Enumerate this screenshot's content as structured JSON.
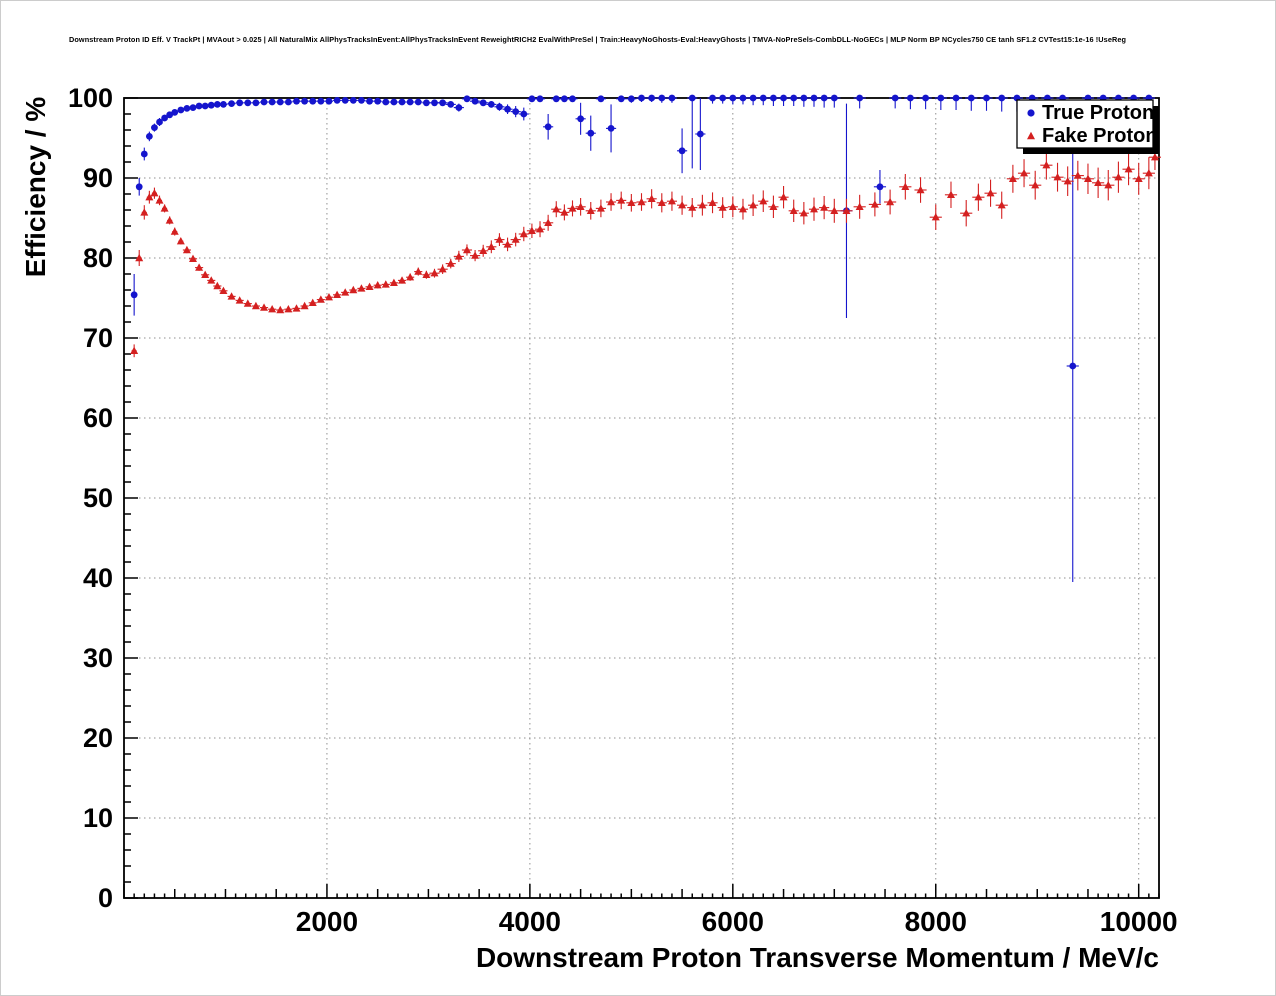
{
  "chart_data": {
    "type": "scatter",
    "title": "Downstream Proton ID Eff. V TrackPt | MVAout > 0.025 | All NaturalMix AllPhysTracksInEvent:AllPhysTracksInEvent ReweightRICH2 EvalWithPreSel | Train:HeavyNoGhosts-Eval:HeavyGhosts | TMVA-NoPreSels-CombDLL-NoGECs | MLP Norm BP NCycles750 CE tanh SF1.2 CVTest15:1e-16 !UseReg",
    "xlabel": "Downstream Proton Transverse Momentum / MeV/c",
    "ylabel": "Efficiency / %",
    "xlim": [
      0,
      10200
    ],
    "ylim": [
      0,
      100
    ],
    "x_ticks": [
      2000,
      4000,
      6000,
      8000,
      10000
    ],
    "x_tick_labels": [
      "2000",
      "4000",
      "6000",
      "8000",
      "10000"
    ],
    "y_ticks": [
      0,
      10,
      20,
      30,
      40,
      50,
      60,
      70,
      80,
      90,
      100
    ],
    "y_tick_labels": [
      "0",
      "10",
      "20",
      "30",
      "40",
      "50",
      "60",
      "70",
      "80",
      "90",
      "100"
    ],
    "x_minor_step": 100,
    "x_medium_step": 500,
    "y_minor_step": 2,
    "grid": true,
    "grid_color": "#8f8f8f",
    "frame_color": "#000000",
    "x_err_bins": [
      [
        600,
        25
      ],
      [
        3000,
        40
      ],
      [
        7000,
        50
      ],
      [
        99999,
        60
      ]
    ],
    "legend": {
      "position": "top-right",
      "entries": [
        {
          "label": "True Proton",
          "marker": "circle",
          "color": "#1515cd"
        },
        {
          "label": "Fake Proton",
          "marker": "triangle",
          "color": "#d42020"
        }
      ]
    },
    "series": [
      {
        "name": "True Proton",
        "marker": "circle",
        "color": "#1515cd",
        "points": [
          [
            100,
            75.4,
            2.6
          ],
          [
            150,
            88.9,
            1.1
          ],
          [
            200,
            93.0,
            0.8
          ],
          [
            250,
            95.2,
            0.6
          ],
          [
            300,
            96.3,
            0.5
          ],
          [
            350,
            97.0,
            0.5
          ],
          [
            400,
            97.5,
            0.4
          ],
          [
            450,
            97.9,
            0.4
          ],
          [
            500,
            98.2,
            0.3
          ],
          [
            560,
            98.5,
            0.3
          ],
          [
            620,
            98.7,
            0.3
          ],
          [
            680,
            98.8,
            0.25
          ],
          [
            740,
            99.0,
            0.2
          ],
          [
            800,
            99.0,
            0.2
          ],
          [
            860,
            99.1,
            0.2
          ],
          [
            920,
            99.2,
            0.2
          ],
          [
            980,
            99.2,
            0.15
          ],
          [
            1060,
            99.3,
            0.15
          ],
          [
            1140,
            99.4,
            0.15
          ],
          [
            1220,
            99.4,
            0.12
          ],
          [
            1300,
            99.4,
            0.12
          ],
          [
            1380,
            99.5,
            0.12
          ],
          [
            1460,
            99.5,
            0.1
          ],
          [
            1540,
            99.5,
            0.1
          ],
          [
            1620,
            99.5,
            0.1
          ],
          [
            1700,
            99.6,
            0.1
          ],
          [
            1780,
            99.6,
            0.1
          ],
          [
            1860,
            99.6,
            0.1
          ],
          [
            1940,
            99.6,
            0.1
          ],
          [
            2020,
            99.6,
            0.1
          ],
          [
            2100,
            99.7,
            0.1
          ],
          [
            2180,
            99.7,
            0.1
          ],
          [
            2260,
            99.7,
            0.12
          ],
          [
            2340,
            99.7,
            0.12
          ],
          [
            2420,
            99.6,
            0.14
          ],
          [
            2500,
            99.6,
            0.15
          ],
          [
            2580,
            99.5,
            0.16
          ],
          [
            2660,
            99.5,
            0.18
          ],
          [
            2740,
            99.5,
            0.18
          ],
          [
            2820,
            99.5,
            0.2
          ],
          [
            2900,
            99.5,
            0.2
          ],
          [
            2980,
            99.4,
            0.22
          ],
          [
            3060,
            99.4,
            0.25
          ],
          [
            3140,
            99.4,
            0.28
          ],
          [
            3220,
            99.2,
            0.3
          ],
          [
            3300,
            98.8,
            0.5
          ],
          [
            3380,
            99.9,
            0.1
          ],
          [
            3460,
            99.6,
            0.3
          ],
          [
            3540,
            99.4,
            0.35
          ],
          [
            3620,
            99.2,
            0.4
          ],
          [
            3700,
            98.9,
            0.5
          ],
          [
            3780,
            98.6,
            0.6
          ],
          [
            3860,
            98.3,
            0.7
          ],
          [
            3940,
            98.0,
            0.8
          ],
          [
            4020,
            99.9,
            0.1
          ],
          [
            4100,
            99.9,
            0.15
          ],
          [
            4180,
            96.4,
            1.6
          ],
          [
            4260,
            99.9,
            0.2
          ],
          [
            4340,
            99.9,
            0.3
          ],
          [
            4420,
            99.9,
            0.3
          ],
          [
            4500,
            97.4,
            2.0
          ],
          [
            4600,
            95.6,
            2.2
          ],
          [
            4700,
            99.9,
            0.4
          ],
          [
            4800,
            96.2,
            3.0
          ],
          [
            4900,
            99.9,
            0.4
          ],
          [
            5000,
            99.9,
            0.5
          ],
          [
            5100,
            100,
            0.5
          ],
          [
            5200,
            100,
            0.5
          ],
          [
            5300,
            100,
            0.6
          ],
          [
            5400,
            100,
            0.6
          ],
          [
            5500,
            93.4,
            2.8
          ],
          [
            5600,
            100,
            8.8
          ],
          [
            5680,
            95.5,
            4.5
          ],
          [
            5800,
            100,
            0.7
          ],
          [
            5900,
            100,
            0.7
          ],
          [
            6000,
            100,
            0.8
          ],
          [
            6100,
            100,
            0.8
          ],
          [
            6200,
            100,
            0.9
          ],
          [
            6300,
            100,
            0.9
          ],
          [
            6400,
            100,
            1.0
          ],
          [
            6500,
            100,
            1.0
          ],
          [
            6600,
            100,
            1.0
          ],
          [
            6700,
            100,
            1.1
          ],
          [
            6800,
            100,
            1.1
          ],
          [
            6900,
            100,
            1.2
          ],
          [
            7000,
            100,
            1.2
          ],
          [
            7120,
            85.9,
            13.4
          ],
          [
            7250,
            100,
            1.3
          ],
          [
            7450,
            88.9,
            2.1
          ],
          [
            7600,
            100,
            1.3
          ],
          [
            7750,
            100,
            1.4
          ],
          [
            7900,
            100,
            1.4
          ],
          [
            8050,
            100,
            1.5
          ],
          [
            8200,
            100,
            1.5
          ],
          [
            8350,
            100,
            1.6
          ],
          [
            8500,
            100,
            1.6
          ],
          [
            8650,
            100,
            1.7
          ],
          [
            8800,
            100,
            1.7
          ],
          [
            8950,
            100,
            1.8
          ],
          [
            9100,
            100,
            1.8
          ],
          [
            9250,
            100,
            1.9
          ],
          [
            9350,
            66.5,
            27.0
          ],
          [
            9500,
            100,
            2.0
          ],
          [
            9650,
            100,
            2.0
          ],
          [
            9800,
            100,
            2.1
          ],
          [
            9950,
            100,
            2.1
          ],
          [
            10100,
            100,
            2.2
          ]
        ]
      },
      {
        "name": "Fake Proton",
        "marker": "triangle",
        "color": "#d42020",
        "points": [
          [
            100,
            68.4,
            0.8
          ],
          [
            150,
            80.0,
            1.0
          ],
          [
            200,
            85.7,
            0.9
          ],
          [
            250,
            87.6,
            0.8
          ],
          [
            300,
            88.1,
            0.7
          ],
          [
            350,
            87.2,
            0.6
          ],
          [
            400,
            86.2,
            0.5
          ],
          [
            450,
            84.7,
            0.5
          ],
          [
            500,
            83.3,
            0.5
          ],
          [
            560,
            82.1,
            0.4
          ],
          [
            620,
            81.0,
            0.4
          ],
          [
            680,
            79.9,
            0.4
          ],
          [
            740,
            78.8,
            0.4
          ],
          [
            800,
            77.9,
            0.3
          ],
          [
            860,
            77.2,
            0.3
          ],
          [
            920,
            76.5,
            0.3
          ],
          [
            980,
            75.9,
            0.3
          ],
          [
            1060,
            75.2,
            0.3
          ],
          [
            1140,
            74.7,
            0.3
          ],
          [
            1220,
            74.3,
            0.3
          ],
          [
            1300,
            74.0,
            0.25
          ],
          [
            1380,
            73.8,
            0.25
          ],
          [
            1460,
            73.6,
            0.25
          ],
          [
            1540,
            73.5,
            0.25
          ],
          [
            1620,
            73.6,
            0.25
          ],
          [
            1700,
            73.7,
            0.25
          ],
          [
            1780,
            74.0,
            0.3
          ],
          [
            1860,
            74.4,
            0.3
          ],
          [
            1940,
            74.8,
            0.3
          ],
          [
            2020,
            75.1,
            0.3
          ],
          [
            2100,
            75.4,
            0.3
          ],
          [
            2180,
            75.7,
            0.3
          ],
          [
            2260,
            76.0,
            0.35
          ],
          [
            2340,
            76.2,
            0.35
          ],
          [
            2420,
            76.4,
            0.35
          ],
          [
            2500,
            76.6,
            0.4
          ],
          [
            2580,
            76.7,
            0.4
          ],
          [
            2660,
            76.9,
            0.4
          ],
          [
            2740,
            77.2,
            0.4
          ],
          [
            2820,
            77.6,
            0.45
          ],
          [
            2900,
            78.3,
            0.5
          ],
          [
            2980,
            77.9,
            0.5
          ],
          [
            3060,
            78.1,
            0.55
          ],
          [
            3140,
            78.6,
            0.6
          ],
          [
            3220,
            79.3,
            0.6
          ],
          [
            3300,
            80.2,
            0.7
          ],
          [
            3380,
            81.0,
            0.7
          ],
          [
            3460,
            80.3,
            0.7
          ],
          [
            3540,
            80.9,
            0.75
          ],
          [
            3620,
            81.4,
            0.8
          ],
          [
            3700,
            82.3,
            0.8
          ],
          [
            3780,
            81.7,
            0.85
          ],
          [
            3860,
            82.3,
            0.85
          ],
          [
            3940,
            83.0,
            0.9
          ],
          [
            4020,
            83.4,
            0.9
          ],
          [
            4100,
            83.6,
            1.0
          ],
          [
            4180,
            84.4,
            1.0
          ],
          [
            4260,
            86.1,
            1.0
          ],
          [
            4340,
            85.7,
            1.0
          ],
          [
            4420,
            86.2,
            1.0
          ],
          [
            4500,
            86.4,
            1.1
          ],
          [
            4600,
            85.9,
            1.1
          ],
          [
            4700,
            86.2,
            1.1
          ],
          [
            4800,
            87.0,
            1.1
          ],
          [
            4900,
            87.2,
            1.1
          ],
          [
            5000,
            86.9,
            1.1
          ],
          [
            5100,
            87.0,
            1.1
          ],
          [
            5200,
            87.4,
            1.2
          ],
          [
            5300,
            86.9,
            1.2
          ],
          [
            5400,
            87.1,
            1.2
          ],
          [
            5500,
            86.6,
            1.2
          ],
          [
            5600,
            86.3,
            1.2
          ],
          [
            5700,
            86.6,
            1.3
          ],
          [
            5800,
            86.9,
            1.3
          ],
          [
            5900,
            86.3,
            1.3
          ],
          [
            6000,
            86.4,
            1.3
          ],
          [
            6100,
            86.1,
            1.3
          ],
          [
            6200,
            86.6,
            1.35
          ],
          [
            6300,
            87.1,
            1.35
          ],
          [
            6400,
            86.4,
            1.4
          ],
          [
            6500,
            87.6,
            1.4
          ],
          [
            6600,
            85.9,
            1.4
          ],
          [
            6700,
            85.6,
            1.4
          ],
          [
            6800,
            86.1,
            1.45
          ],
          [
            6900,
            86.3,
            1.45
          ],
          [
            7000,
            85.9,
            1.5
          ],
          [
            7120,
            85.9,
            1.5
          ],
          [
            7250,
            86.4,
            1.5
          ],
          [
            7400,
            86.7,
            1.5
          ],
          [
            7550,
            87.0,
            1.55
          ],
          [
            7700,
            88.9,
            1.6
          ],
          [
            7850,
            88.5,
            1.6
          ],
          [
            8000,
            85.1,
            1.6
          ],
          [
            8150,
            87.9,
            1.65
          ],
          [
            8300,
            85.6,
            1.65
          ],
          [
            8420,
            87.6,
            1.7
          ],
          [
            8540,
            88.1,
            1.7
          ],
          [
            8650,
            86.6,
            1.7
          ],
          [
            8760,
            89.9,
            1.75
          ],
          [
            8870,
            90.6,
            1.75
          ],
          [
            8980,
            89.1,
            1.8
          ],
          [
            9090,
            91.6,
            1.8
          ],
          [
            9200,
            90.1,
            1.8
          ],
          [
            9300,
            89.6,
            1.85
          ],
          [
            9400,
            90.3,
            1.85
          ],
          [
            9500,
            89.9,
            1.9
          ],
          [
            9600,
            89.4,
            1.9
          ],
          [
            9700,
            89.1,
            1.9
          ],
          [
            9800,
            90.1,
            1.95
          ],
          [
            9900,
            91.1,
            2.0
          ],
          [
            10000,
            89.9,
            2.0
          ],
          [
            10100,
            90.6,
            2.0
          ],
          [
            10160,
            92.6,
            1.6
          ]
        ]
      }
    ]
  }
}
